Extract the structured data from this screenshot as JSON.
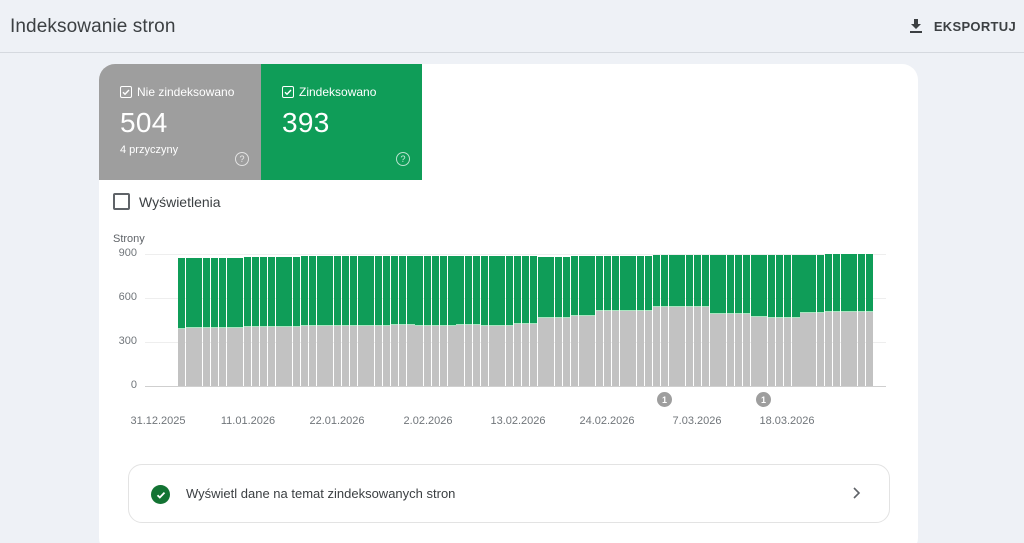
{
  "header": {
    "title": "Indeksowanie stron",
    "export_label": "EKSPORTUJ",
    "export_icon": "download-icon"
  },
  "tiles": {
    "not_indexed": {
      "label": "Nie zindeksowano",
      "value": "504",
      "sub": "4 przyczyny",
      "checked": true,
      "color": "#9e9e9e"
    },
    "indexed": {
      "label": "Zindeksowano",
      "value": "393",
      "checked": true,
      "color": "#0f9d58"
    }
  },
  "views_toggle": {
    "label": "Wyświetlenia",
    "checked": false
  },
  "link_row": {
    "label": "Wyświetl dane na temat zindeksowanych stron",
    "icon": "check-circle-icon"
  },
  "chart_data": {
    "type": "bar",
    "stacked": true,
    "ylabel": "Strony",
    "ylim": [
      0,
      900
    ],
    "yticks": [
      "900",
      "600",
      "300",
      "0"
    ],
    "x_tick_labels": [
      "31.12.2025",
      "11.01.2026",
      "22.01.2026",
      "2.02.2026",
      "13.02.2026",
      "24.02.2026",
      "7.03.2026",
      "18.03.2026"
    ],
    "annotations": [
      {
        "label": "1",
        "near": "~5.03.2026"
      },
      {
        "label": "1",
        "near": "~17.03.2026"
      }
    ],
    "grid": true,
    "legend": "none (tiles act as legend)",
    "series": [
      {
        "name": "Nie zindeksowano",
        "color": "#c2c2c2",
        "values": [
          388,
          395,
          395,
          395,
          395,
          395,
          395,
          395,
          402,
          402,
          402,
          402,
          402,
          402,
          402,
          409,
          409,
          409,
          409,
          409,
          409,
          409,
          409,
          409,
          409,
          409,
          416,
          416,
          416,
          409,
          409,
          409,
          409,
          409,
          416,
          416,
          416,
          409,
          409,
          409,
          409,
          423,
          423,
          423,
          464,
          464,
          464,
          464,
          477,
          477,
          477,
          511,
          511,
          511,
          511,
          511,
          511,
          511,
          539,
          539,
          539,
          539,
          539,
          539,
          539,
          491,
          491,
          491,
          491,
          491,
          470,
          470,
          464,
          464,
          464,
          464,
          498,
          498,
          498,
          504,
          504,
          504,
          504,
          504,
          504
        ]
      },
      {
        "name": "Zindeksowano",
        "color": "#0f9d58",
        "values": [
          482,
          479,
          481,
          481,
          481,
          481,
          481,
          481,
          476,
          476,
          476,
          476,
          476,
          476,
          476,
          475,
          475,
          475,
          475,
          475,
          475,
          475,
          475,
          475,
          475,
          475,
          468,
          468,
          468,
          477,
          477,
          477,
          477,
          477,
          470,
          470,
          470,
          479,
          479,
          479,
          479,
          462,
          462,
          462,
          418,
          418,
          418,
          418,
          409,
          409,
          409,
          377,
          377,
          377,
          377,
          377,
          377,
          377,
          355,
          355,
          355,
          355,
          355,
          355,
          355,
          402,
          402,
          402,
          402,
          402,
          423,
          423,
          427,
          427,
          427,
          427,
          395,
          395,
          395,
          393,
          393,
          393,
          393,
          393,
          393
        ]
      }
    ]
  }
}
